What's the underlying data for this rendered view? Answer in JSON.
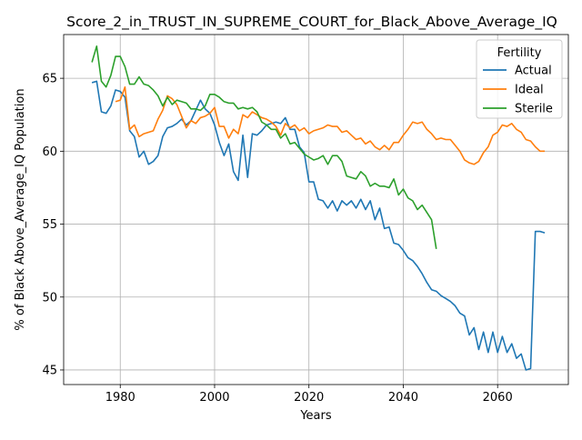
{
  "chart_data": {
    "type": "line",
    "title": "Score_2_in_TRUST_IN_SUPREME_COURT_for_Black_Above_Average_IQ",
    "xlabel": "Years",
    "ylabel": "% of Black Above_Average_IQ Population",
    "xlim": [
      1968,
      2075
    ],
    "ylim": [
      44,
      68
    ],
    "xticks": [
      1980,
      2000,
      2020,
      2040,
      2060
    ],
    "yticks": [
      45,
      50,
      55,
      60,
      65
    ],
    "grid": true,
    "legend": {
      "title": "Fertility",
      "position": "top-right"
    },
    "series": [
      {
        "name": "Actual",
        "color": "#1f77b4",
        "points": [
          [
            1974,
            64.7
          ],
          [
            1975,
            64.8
          ],
          [
            1976,
            62.7
          ],
          [
            1977,
            62.6
          ],
          [
            1978,
            63.1
          ],
          [
            1979,
            64.2
          ],
          [
            1980,
            64.1
          ],
          [
            1981,
            63.7
          ],
          [
            1982,
            61.4
          ],
          [
            1983,
            61.0
          ],
          [
            1984,
            59.6
          ],
          [
            1985,
            60.0
          ],
          [
            1986,
            59.1
          ],
          [
            1987,
            59.3
          ],
          [
            1988,
            59.7
          ],
          [
            1989,
            61.0
          ],
          [
            1990,
            61.6
          ],
          [
            1991,
            61.7
          ],
          [
            1992,
            61.9
          ],
          [
            1993,
            62.2
          ],
          [
            1994,
            61.8
          ],
          [
            1995,
            62.1
          ],
          [
            1996,
            62.8
          ],
          [
            1997,
            63.5
          ],
          [
            1998,
            62.9
          ],
          [
            1999,
            62.6
          ],
          [
            2000,
            61.8
          ],
          [
            2001,
            60.6
          ],
          [
            2002,
            59.7
          ],
          [
            2003,
            60.5
          ],
          [
            2004,
            58.6
          ],
          [
            2005,
            58.0
          ],
          [
            2006,
            61.1
          ],
          [
            2007,
            58.2
          ],
          [
            2008,
            61.2
          ],
          [
            2009,
            61.1
          ],
          [
            2010,
            61.4
          ],
          [
            2011,
            61.8
          ],
          [
            2012,
            61.9
          ],
          [
            2013,
            62.0
          ],
          [
            2014,
            61.9
          ],
          [
            2015,
            62.3
          ],
          [
            2016,
            61.5
          ],
          [
            2017,
            61.5
          ],
          [
            2018,
            60.3
          ],
          [
            2019,
            59.9
          ],
          [
            2020,
            57.9
          ],
          [
            2021,
            57.9
          ],
          [
            2022,
            56.7
          ],
          [
            2023,
            56.6
          ],
          [
            2024,
            56.1
          ],
          [
            2025,
            56.6
          ],
          [
            2026,
            55.9
          ],
          [
            2027,
            56.6
          ],
          [
            2028,
            56.3
          ],
          [
            2029,
            56.6
          ],
          [
            2030,
            56.1
          ],
          [
            2031,
            56.7
          ],
          [
            2032,
            56.0
          ],
          [
            2033,
            56.6
          ],
          [
            2034,
            55.3
          ],
          [
            2035,
            56.1
          ],
          [
            2036,
            54.7
          ],
          [
            2037,
            54.8
          ],
          [
            2038,
            53.7
          ],
          [
            2039,
            53.6
          ],
          [
            2040,
            53.2
          ],
          [
            2041,
            52.7
          ],
          [
            2042,
            52.5
          ],
          [
            2043,
            52.1
          ],
          [
            2044,
            51.6
          ],
          [
            2045,
            51.0
          ],
          [
            2046,
            50.5
          ],
          [
            2047,
            50.4
          ],
          [
            2048,
            50.1
          ],
          [
            2049,
            49.9
          ],
          [
            2050,
            49.7
          ],
          [
            2051,
            49.4
          ],
          [
            2052,
            48.9
          ],
          [
            2053,
            48.7
          ],
          [
            2054,
            47.4
          ],
          [
            2055,
            47.9
          ],
          [
            2056,
            46.4
          ],
          [
            2057,
            47.6
          ],
          [
            2058,
            46.2
          ],
          [
            2059,
            47.6
          ],
          [
            2060,
            46.2
          ],
          [
            2061,
            47.3
          ],
          [
            2062,
            46.2
          ],
          [
            2063,
            46.8
          ],
          [
            2064,
            45.8
          ],
          [
            2065,
            46.1
          ],
          [
            2066,
            45.0
          ],
          [
            2067,
            45.1
          ],
          [
            2068,
            54.5
          ],
          [
            2069,
            54.5
          ],
          [
            2070,
            54.4
          ]
        ]
      },
      {
        "name": "Ideal",
        "color": "#ff7f0e",
        "points": [
          [
            1979,
            63.4
          ],
          [
            1980,
            63.5
          ],
          [
            1981,
            64.4
          ],
          [
            1982,
            61.5
          ],
          [
            1983,
            61.8
          ],
          [
            1984,
            61.0
          ],
          [
            1985,
            61.2
          ],
          [
            1986,
            61.3
          ],
          [
            1987,
            61.4
          ],
          [
            1988,
            62.2
          ],
          [
            1989,
            62.8
          ],
          [
            1990,
            63.8
          ],
          [
            1991,
            63.6
          ],
          [
            1992,
            63.2
          ],
          [
            1993,
            62.4
          ],
          [
            1994,
            61.6
          ],
          [
            1995,
            62.1
          ],
          [
            1996,
            61.9
          ],
          [
            1997,
            62.3
          ],
          [
            1998,
            62.4
          ],
          [
            1999,
            62.6
          ],
          [
            2000,
            63.0
          ],
          [
            2001,
            61.7
          ],
          [
            2002,
            61.7
          ],
          [
            2003,
            60.9
          ],
          [
            2004,
            61.5
          ],
          [
            2005,
            61.2
          ],
          [
            2006,
            62.5
          ],
          [
            2007,
            62.3
          ],
          [
            2008,
            62.7
          ],
          [
            2009,
            62.5
          ],
          [
            2010,
            62.3
          ],
          [
            2011,
            62.2
          ],
          [
            2012,
            62.0
          ],
          [
            2013,
            61.7
          ],
          [
            2014,
            61.1
          ],
          [
            2015,
            61.9
          ],
          [
            2016,
            61.6
          ],
          [
            2017,
            61.8
          ],
          [
            2018,
            61.4
          ],
          [
            2019,
            61.6
          ],
          [
            2020,
            61.2
          ],
          [
            2021,
            61.4
          ],
          [
            2022,
            61.5
          ],
          [
            2023,
            61.6
          ],
          [
            2024,
            61.8
          ],
          [
            2025,
            61.7
          ],
          [
            2026,
            61.7
          ],
          [
            2027,
            61.3
          ],
          [
            2028,
            61.4
          ],
          [
            2029,
            61.1
          ],
          [
            2030,
            60.8
          ],
          [
            2031,
            60.9
          ],
          [
            2032,
            60.5
          ],
          [
            2033,
            60.7
          ],
          [
            2034,
            60.3
          ],
          [
            2035,
            60.1
          ],
          [
            2036,
            60.4
          ],
          [
            2037,
            60.1
          ],
          [
            2038,
            60.6
          ],
          [
            2039,
            60.6
          ],
          [
            2040,
            61.1
          ],
          [
            2041,
            61.5
          ],
          [
            2042,
            62.0
          ],
          [
            2043,
            61.9
          ],
          [
            2044,
            62.0
          ],
          [
            2045,
            61.5
          ],
          [
            2046,
            61.2
          ],
          [
            2047,
            60.8
          ],
          [
            2048,
            60.9
          ],
          [
            2049,
            60.8
          ],
          [
            2050,
            60.8
          ],
          [
            2051,
            60.4
          ],
          [
            2052,
            60.0
          ],
          [
            2053,
            59.4
          ],
          [
            2054,
            59.2
          ],
          [
            2055,
            59.1
          ],
          [
            2056,
            59.3
          ],
          [
            2057,
            59.9
          ],
          [
            2058,
            60.3
          ],
          [
            2059,
            61.1
          ],
          [
            2060,
            61.3
          ],
          [
            2061,
            61.8
          ],
          [
            2062,
            61.7
          ],
          [
            2063,
            61.9
          ],
          [
            2064,
            61.5
          ],
          [
            2065,
            61.3
          ],
          [
            2066,
            60.8
          ],
          [
            2067,
            60.7
          ],
          [
            2068,
            60.3
          ],
          [
            2069,
            60.0
          ],
          [
            2070,
            60.0
          ]
        ]
      },
      {
        "name": "Sterile",
        "color": "#2ca02c",
        "points": [
          [
            1974,
            66.1
          ],
          [
            1975,
            67.2
          ],
          [
            1976,
            64.8
          ],
          [
            1977,
            64.4
          ],
          [
            1978,
            65.2
          ],
          [
            1979,
            66.5
          ],
          [
            1980,
            66.5
          ],
          [
            1981,
            65.8
          ],
          [
            1982,
            64.6
          ],
          [
            1983,
            64.6
          ],
          [
            1984,
            65.1
          ],
          [
            1985,
            64.6
          ],
          [
            1986,
            64.5
          ],
          [
            1987,
            64.2
          ],
          [
            1988,
            63.8
          ],
          [
            1989,
            63.1
          ],
          [
            1990,
            63.7
          ],
          [
            1991,
            63.2
          ],
          [
            1992,
            63.5
          ],
          [
            1993,
            63.4
          ],
          [
            1994,
            63.3
          ],
          [
            1995,
            62.9
          ],
          [
            1996,
            62.9
          ],
          [
            1997,
            62.8
          ],
          [
            1998,
            63.1
          ],
          [
            1999,
            63.9
          ],
          [
            2000,
            63.9
          ],
          [
            2001,
            63.7
          ],
          [
            2002,
            63.4
          ],
          [
            2003,
            63.3
          ],
          [
            2004,
            63.3
          ],
          [
            2005,
            62.9
          ],
          [
            2006,
            63.0
          ],
          [
            2007,
            62.9
          ],
          [
            2008,
            63.0
          ],
          [
            2009,
            62.7
          ],
          [
            2010,
            62.0
          ],
          [
            2011,
            61.8
          ],
          [
            2012,
            61.5
          ],
          [
            2013,
            61.5
          ],
          [
            2014,
            60.9
          ],
          [
            2015,
            61.2
          ],
          [
            2016,
            60.5
          ],
          [
            2017,
            60.6
          ],
          [
            2018,
            60.2
          ],
          [
            2019,
            59.8
          ],
          [
            2020,
            59.6
          ],
          [
            2021,
            59.4
          ],
          [
            2022,
            59.5
          ],
          [
            2023,
            59.7
          ],
          [
            2024,
            59.1
          ],
          [
            2025,
            59.7
          ],
          [
            2026,
            59.7
          ],
          [
            2027,
            59.3
          ],
          [
            2028,
            58.3
          ],
          [
            2029,
            58.2
          ],
          [
            2030,
            58.1
          ],
          [
            2031,
            58.6
          ],
          [
            2032,
            58.3
          ],
          [
            2033,
            57.6
          ],
          [
            2034,
            57.8
          ],
          [
            2035,
            57.6
          ],
          [
            2036,
            57.6
          ],
          [
            2037,
            57.5
          ],
          [
            2038,
            58.1
          ],
          [
            2039,
            57.0
          ],
          [
            2040,
            57.4
          ],
          [
            2041,
            56.8
          ],
          [
            2042,
            56.6
          ],
          [
            2043,
            56.0
          ],
          [
            2044,
            56.3
          ],
          [
            2045,
            55.8
          ],
          [
            2046,
            55.3
          ],
          [
            2047,
            53.3
          ]
        ]
      }
    ]
  }
}
